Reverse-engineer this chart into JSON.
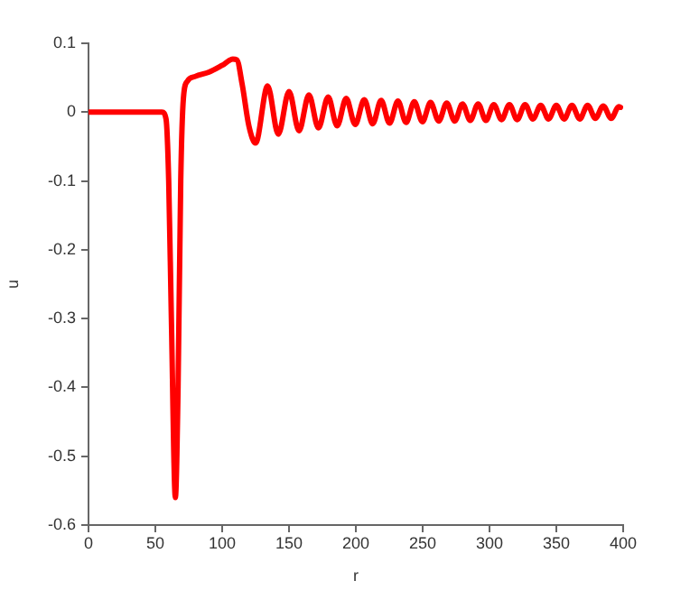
{
  "chart_data": {
    "type": "line",
    "xlabel": "r",
    "ylabel": "u",
    "xlim": [
      0,
      400
    ],
    "xticks": [
      0,
      50,
      100,
      150,
      200,
      250,
      300,
      350,
      400
    ],
    "ylim": [
      -0.6,
      0.1
    ],
    "yticks": [
      -0.6,
      -0.5,
      -0.4,
      -0.3,
      -0.2,
      -0.1,
      0,
      0.1
    ],
    "grid": false,
    "legend": false,
    "marker": "none",
    "line_style": "solid",
    "series": [
      {
        "color": "#ff0000",
        "x": [
          0,
          55,
          58,
          60,
          62,
          65,
          67,
          69,
          71,
          74,
          80,
          90,
          100,
          108,
          111,
          115,
          120,
          125,
          134,
          142,
          150,
          157.5,
          164.9,
          172,
          179.3,
          186,
          192.8,
          199.5,
          206.3,
          212.6,
          218.9,
          225.2,
          231.5,
          237.6,
          243.7,
          249.8,
          255.9,
          262,
          268,
          274,
          279.8,
          285.6,
          291.5,
          297.3,
          303.2,
          309,
          314.9,
          320.7,
          326.6,
          332.5,
          338.3,
          344.2,
          350,
          355.8,
          361.7,
          367.5,
          373.4,
          379.2,
          385.1,
          391,
          396.8,
          398
        ],
        "values": [
          0,
          0,
          -0.01,
          -0.1,
          -0.3,
          -0.56,
          -0.4,
          -0.1,
          0.02,
          0.045,
          0.052,
          0.058,
          0.068,
          0.077,
          0.076,
          0.04,
          -0.02,
          -0.045,
          0.038,
          -0.032,
          0.03,
          -0.027,
          0.025,
          -0.023,
          0.022,
          -0.02,
          0.02,
          -0.018,
          0.018,
          -0.017,
          0.017,
          -0.016,
          0.016,
          -0.015,
          0.015,
          -0.014,
          0.014,
          -0.013,
          0.013,
          -0.013,
          0.012,
          -0.012,
          0.012,
          -0.012,
          0.011,
          -0.011,
          0.011,
          -0.011,
          0.011,
          -0.01,
          0.01,
          -0.01,
          0.01,
          -0.01,
          0.01,
          -0.01,
          0.01,
          -0.009,
          0.009,
          -0.009,
          0.008,
          0.007
        ]
      }
    ]
  }
}
